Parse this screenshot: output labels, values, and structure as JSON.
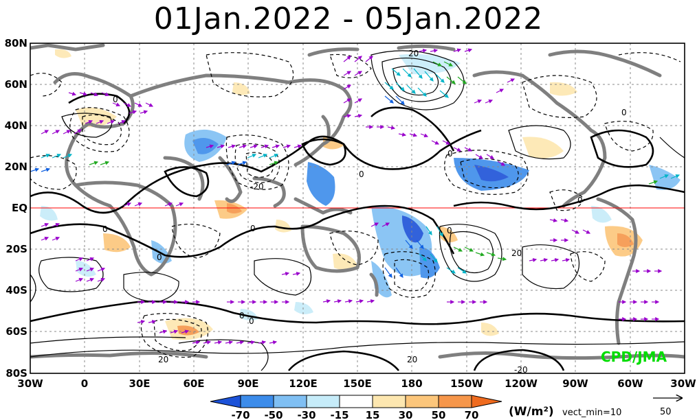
{
  "title": "01Jan.2022 - 05Jan.2022",
  "map": {
    "lon_range": [
      "30W",
      "30W"
    ],
    "lat_range": [
      "80S",
      "80N"
    ],
    "lat_labels": [
      "80N",
      "60N",
      "40N",
      "20N",
      "EQ",
      "20S",
      "40S",
      "60S",
      "80S"
    ],
    "lon_labels": [
      "30W",
      "0",
      "30E",
      "60E",
      "90E",
      "120E",
      "150E",
      "180",
      "150W",
      "120W",
      "90W",
      "60W",
      "30W"
    ],
    "contour_labels": [
      "0",
      "0",
      "0",
      "0",
      "-20",
      "0",
      "0",
      "0",
      "0",
      "0",
      "20",
      "20",
      "-20",
      "0",
      "0",
      "20",
      "20"
    ],
    "equator_line_color": "#ff0000",
    "land_color": "#7f7f7f",
    "vector_colors": [
      "#9900cc",
      "#00c8c8",
      "#22aa22",
      "#1060e0"
    ]
  },
  "colorbar": {
    "ticks": [
      "-70",
      "-50",
      "-30",
      "-15",
      "15",
      "30",
      "50",
      "70"
    ],
    "colors": [
      "#1c52d8",
      "#3c8cea",
      "#7fbff3",
      "#c6ecf9",
      "#ffffff",
      "#fde7b0",
      "#fcc67b",
      "#f6964a",
      "#ef6b1f"
    ],
    "units": "(W/m²)",
    "vect_min": "vect_min=10"
  },
  "reference_vector": {
    "value": "50",
    "icon": "arrow-right-icon"
  },
  "credit": "CPD/JMA"
}
